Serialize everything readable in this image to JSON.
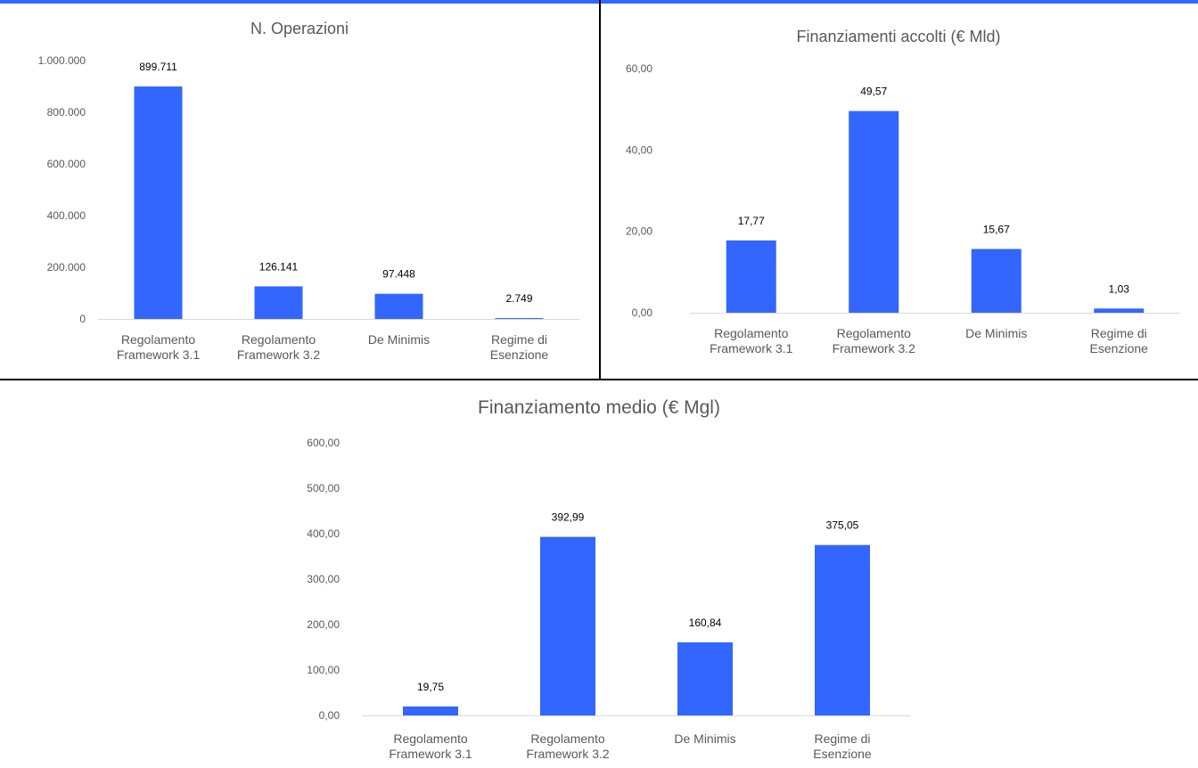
{
  "colors": {
    "bar": "#3366ff",
    "top_accent": "#3366ff",
    "divider": "#000000"
  },
  "chart_data": [
    {
      "type": "bar",
      "title": "N. Operazioni",
      "categories": [
        [
          "Regolamento",
          "Framework 3.1"
        ],
        [
          "Regolamento",
          "Framework 3.2"
        ],
        [
          "De Minimis"
        ],
        [
          "Regime di",
          "Esenzione"
        ]
      ],
      "values": [
        899711,
        126141,
        97448,
        2749
      ],
      "data_labels": [
        "899.711",
        "126.141",
        "97.448",
        "2.749"
      ],
      "yticks": [
        0,
        200000,
        400000,
        600000,
        800000,
        1000000
      ],
      "ytick_labels": [
        "0",
        "200.000",
        "400.000",
        "600.000",
        "800.000",
        "1.000.000"
      ],
      "ylim": [
        0,
        1000000
      ],
      "grid": false,
      "legend": "none"
    },
    {
      "type": "bar",
      "title": "Finanziamenti accolti (€ Mld)",
      "categories": [
        [
          "Regolamento",
          "Framework 3.1"
        ],
        [
          "Regolamento",
          "Framework 3.2"
        ],
        [
          "De Minimis"
        ],
        [
          "Regime di",
          "Esenzione"
        ]
      ],
      "values": [
        17.77,
        49.57,
        15.67,
        1.03
      ],
      "data_labels": [
        "17,77",
        "49,57",
        "15,67",
        "1,03"
      ],
      "yticks": [
        0,
        20,
        40,
        60
      ],
      "ytick_labels": [
        "0,00",
        "20,00",
        "40,00",
        "60,00"
      ],
      "ylim": [
        0,
        60
      ],
      "grid": false,
      "legend": "none"
    },
    {
      "type": "bar",
      "title": "Finanziamento medio (€ Mgl)",
      "categories": [
        [
          "Regolamento",
          "Framework 3.1"
        ],
        [
          "Regolamento",
          "Framework 3.2"
        ],
        [
          "De Minimis"
        ],
        [
          "Regime di",
          "Esenzione"
        ]
      ],
      "values": [
        19.75,
        392.99,
        160.84,
        375.05
      ],
      "data_labels": [
        "19,75",
        "392,99",
        "160,84",
        "375,05"
      ],
      "yticks": [
        0,
        100,
        200,
        300,
        400,
        500,
        600
      ],
      "ytick_labels": [
        "0,00",
        "100,00",
        "200,00",
        "300,00",
        "400,00",
        "500,00",
        "600,00"
      ],
      "ylim": [
        0,
        600
      ],
      "grid": false,
      "legend": "none"
    }
  ]
}
